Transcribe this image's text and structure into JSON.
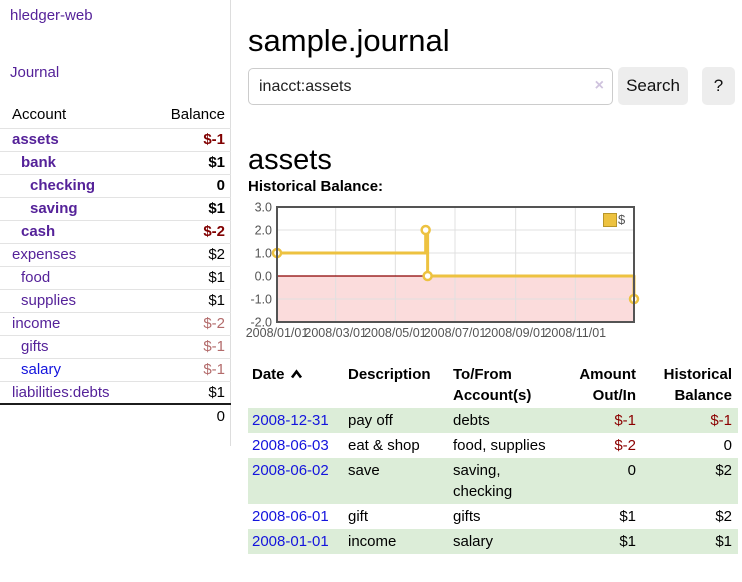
{
  "app": {
    "title": "hledger-web",
    "nav_journal": "Journal"
  },
  "colors": {
    "link_purple": "#552299",
    "link_blue": "#1414dd",
    "negative_strong": "#800000",
    "negative_soft": "#b36b6b",
    "row_shade_green": "#dcedd8",
    "series_gold": "#edc240",
    "negative_region_pink": "#fbdcdc",
    "zero_line_red": "#8b0000",
    "chart_border_gray": "#545454"
  },
  "sidebar": {
    "header": {
      "account": "Account",
      "balance": "Balance"
    },
    "rows": [
      {
        "name": "assets",
        "indent": 0,
        "bold": true,
        "balance": "$-1",
        "neg": "strong"
      },
      {
        "name": "bank",
        "indent": 1,
        "bold": true,
        "balance": "$1",
        "neg": null
      },
      {
        "name": "checking",
        "indent": 2,
        "bold": true,
        "balance": "0",
        "neg": null
      },
      {
        "name": "saving",
        "indent": 2,
        "bold": true,
        "balance": "$1",
        "neg": null
      },
      {
        "name": "cash",
        "indent": 1,
        "bold": true,
        "balance": "$-2",
        "neg": "strong"
      },
      {
        "name": "expenses",
        "indent": 0,
        "bold": false,
        "balance": "$2",
        "neg": null
      },
      {
        "name": "food",
        "indent": 1,
        "bold": false,
        "balance": "$1",
        "neg": null
      },
      {
        "name": "supplies",
        "indent": 1,
        "bold": false,
        "balance": "$1",
        "neg": null
      },
      {
        "name": "income",
        "indent": 0,
        "bold": false,
        "balance": "$-2",
        "neg": "soft"
      },
      {
        "name": "gifts",
        "indent": 1,
        "bold": false,
        "balance": "$-1",
        "neg": "soft"
      },
      {
        "name": "salary",
        "indent": 1,
        "bold": false,
        "balance": "$-1",
        "neg": "soft",
        "blue": true
      },
      {
        "name": "liabilities:debts",
        "indent": 0,
        "bold": false,
        "balance": "$1",
        "neg": null
      }
    ],
    "total": "0"
  },
  "header": {
    "title": "sample.journal"
  },
  "search": {
    "value": "inacct:assets",
    "clear_icon": "×",
    "button": "Search",
    "help_button": "?"
  },
  "account_page": {
    "heading": "assets",
    "chart_label": "Historical Balance:"
  },
  "chart_data": {
    "type": "line",
    "title": "Historical Balance",
    "step": true,
    "series": [
      {
        "name": "$",
        "color": "#edc240",
        "points": [
          [
            "2008-01-01",
            1
          ],
          [
            "2008-06-01",
            2
          ],
          [
            "2008-06-03",
            0
          ],
          [
            "2008-12-31",
            -1
          ]
        ]
      }
    ],
    "ylim": [
      -2,
      3
    ],
    "yticks": [
      "3.0",
      "2.0",
      "1.0",
      "0.0",
      "-1.0",
      "-2.0"
    ],
    "xticks": [
      "2008/01/01",
      "2008/03/01",
      "2008/05/01",
      "2008/07/01",
      "2008/09/01",
      "2008/11/01"
    ],
    "xrange": [
      "2008-01-01",
      "2008-12-31"
    ],
    "grid": true,
    "legend_position": "top-right",
    "negative_fill": "#fbdcdc",
    "zero_line_color": "#8b0000"
  },
  "register": {
    "columns": [
      "Date",
      "Description",
      "To/From Account(s)",
      "Amount Out/In",
      "Historical Balance"
    ],
    "rows": [
      {
        "date": "2008-12-31",
        "description": "pay off",
        "accounts": "debts",
        "amount": "$-1",
        "amount_neg": true,
        "balance": "$-1",
        "balance_neg": true,
        "shaded": true
      },
      {
        "date": "2008-06-03",
        "description": "eat & shop",
        "accounts": "food, supplies",
        "amount": "$-2",
        "amount_neg": true,
        "balance": "0",
        "balance_neg": false,
        "shaded": false
      },
      {
        "date": "2008-06-02",
        "description": "save",
        "accounts": "saving, checking",
        "amount": "0",
        "amount_neg": false,
        "balance": "$2",
        "balance_neg": false,
        "shaded": true
      },
      {
        "date": "2008-06-01",
        "description": "gift",
        "accounts": "gifts",
        "amount": "$1",
        "amount_neg": false,
        "balance": "$2",
        "balance_neg": false,
        "shaded": false
      },
      {
        "date": "2008-01-01",
        "description": "income",
        "accounts": "salary",
        "amount": "$1",
        "amount_neg": false,
        "balance": "$1",
        "balance_neg": false,
        "shaded": true
      }
    ]
  }
}
